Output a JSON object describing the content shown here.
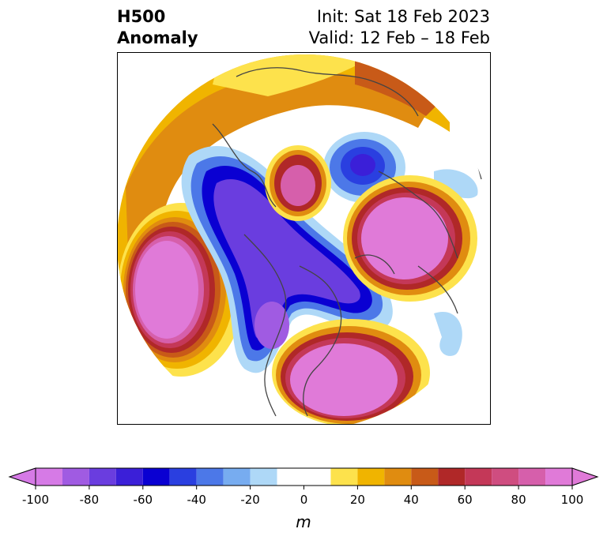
{
  "title": {
    "left_line1": "H500",
    "left_line2": "Anomaly",
    "right_line1": "Init: Sat 18 Feb 2023",
    "right_line2": "Valid: 12 Feb – 18 Feb"
  },
  "colorbar": {
    "unit_label": "m",
    "extend": "both",
    "ticks": [
      "-100",
      "-80",
      "-60",
      "-40",
      "-20",
      "0",
      "20",
      "40",
      "60",
      "80",
      "100"
    ],
    "bins": [
      {
        "from": -100,
        "to": -90,
        "color": "#d67ae6"
      },
      {
        "from": -90,
        "to": -80,
        "color": "#a05be2"
      },
      {
        "from": -80,
        "to": -70,
        "color": "#6a3ddf"
      },
      {
        "from": -70,
        "to": -60,
        "color": "#3b1fd8"
      },
      {
        "from": -60,
        "to": -50,
        "color": "#0a00d2"
      },
      {
        "from": -50,
        "to": -40,
        "color": "#2a3fe0"
      },
      {
        "from": -40,
        "to": -30,
        "color": "#4c78e8"
      },
      {
        "from": -30,
        "to": -20,
        "color": "#77acf0"
      },
      {
        "from": -20,
        "to": -10,
        "color": "#aed8f7"
      },
      {
        "from": -10,
        "to": 10,
        "color": "#ffffff"
      },
      {
        "from": 10,
        "to": 20,
        "color": "#fde24c"
      },
      {
        "from": 20,
        "to": 30,
        "color": "#f0b400"
      },
      {
        "from": 30,
        "to": 40,
        "color": "#e08c10"
      },
      {
        "from": 40,
        "to": 50,
        "color": "#c85a18"
      },
      {
        "from": 50,
        "to": 60,
        "color": "#b02828"
      },
      {
        "from": 60,
        "to": 70,
        "color": "#c43858"
      },
      {
        "from": 70,
        "to": 80,
        "color": "#cf4d80"
      },
      {
        "from": 80,
        "to": 90,
        "color": "#d65fab"
      },
      {
        "from": 90,
        "to": 100,
        "color": "#e07ad8"
      }
    ],
    "under_color": "#d67ae6",
    "over_color": "#e07ad8"
  },
  "map": {
    "projection": "north-polar-stereographic",
    "coastline_color": "#444444"
  }
}
